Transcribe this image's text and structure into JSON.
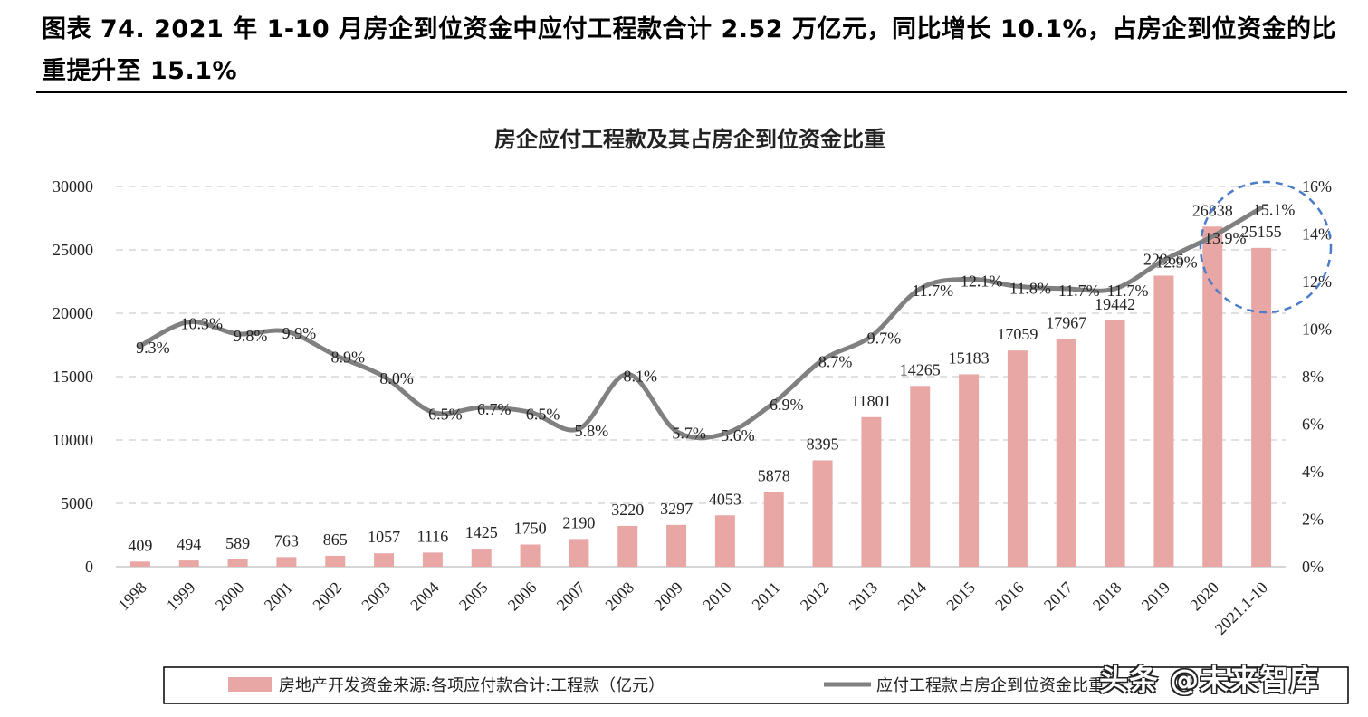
{
  "figure": {
    "title": "图表 74. 2021 年 1-10 月房企到位资金中应付工程款合计 2.52 万亿元，同比增长 10.1%，占房企到位资金的比重提升至 15.1%"
  },
  "watermark": "头条 @未来智库",
  "chart_data": {
    "type": "bar+line",
    "title": "房企应付工程款及其占房企到位资金比重",
    "categories": [
      "1998",
      "1999",
      "2000",
      "2001",
      "2002",
      "2003",
      "2004",
      "2005",
      "2006",
      "2007",
      "2008",
      "2009",
      "2010",
      "2011",
      "2012",
      "2013",
      "2014",
      "2015",
      "2016",
      "2017",
      "2018",
      "2019",
      "2020",
      "2021.1-10"
    ],
    "series": [
      {
        "name": "房地产开发资金来源:各项应付款合计:工程款（亿元）",
        "kind": "bar",
        "axis": "left",
        "color": "#e8a7a5",
        "values": [
          409,
          494,
          589,
          763,
          865,
          1057,
          1116,
          1425,
          1750,
          2190,
          3220,
          3297,
          4053,
          5878,
          8395,
          11801,
          14265,
          15183,
          17059,
          17967,
          19442,
          22965,
          26838,
          25155
        ],
        "labels": [
          "409",
          "494",
          "589",
          "763",
          "865",
          "1057",
          "1116",
          "1425",
          "1750",
          "2190",
          "3220",
          "3297",
          "4053",
          "5878",
          "8395",
          "11801",
          "14265",
          "15183",
          "17059",
          "17967",
          "19442",
          "22965",
          "26838",
          "25155"
        ]
      },
      {
        "name": "应付工程款占房企到位资金比重",
        "kind": "line",
        "axis": "right",
        "color": "#808080",
        "values": [
          9.3,
          10.3,
          9.8,
          9.9,
          8.9,
          8.0,
          6.5,
          6.7,
          6.5,
          5.8,
          8.1,
          5.7,
          5.6,
          6.9,
          8.7,
          9.7,
          11.7,
          12.1,
          11.8,
          11.7,
          11.7,
          12.9,
          13.9,
          15.1
        ],
        "labels": [
          "9.3%",
          "10.3%",
          "9.8%",
          "9.9%",
          "8.9%",
          "8.0%",
          "6.5%",
          "6.7%",
          "6.5%",
          "5.8%",
          "8.1%",
          "5.7%",
          "5.6%",
          "6.9%",
          "8.7%",
          "9.7%",
          "11.7%",
          "12.1%",
          "11.8%",
          "11.7%",
          "11.7%",
          "12.9%",
          "13.9%",
          "15.1%"
        ]
      }
    ],
    "y_left": {
      "range": [
        0,
        30000
      ],
      "ticks": [
        "0",
        "5000",
        "10000",
        "15000",
        "20000",
        "25000",
        "30000"
      ]
    },
    "y_right": {
      "range": [
        0,
        16
      ],
      "ticks": [
        "0%",
        "2%",
        "4%",
        "6%",
        "8%",
        "10%",
        "12%",
        "14%",
        "16%"
      ]
    },
    "grid": "horizontal dashed",
    "legend": "bottom",
    "annotation": "blue dashed circle around 2020–2021.1-10"
  }
}
